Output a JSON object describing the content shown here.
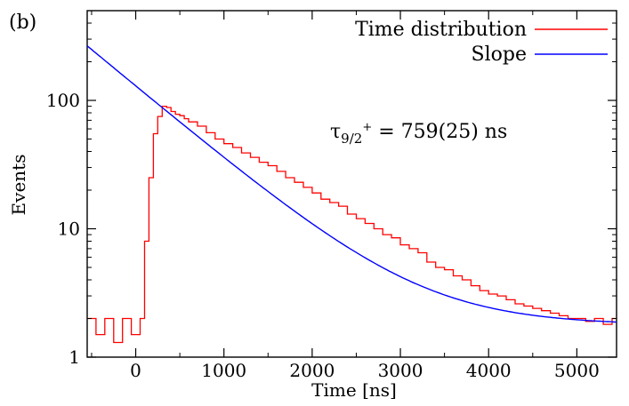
{
  "chart_data": {
    "type": "line",
    "panel_label": "(b)",
    "xlabel": "Time [ns]",
    "ylabel": "Events",
    "xlim": [
      -550,
      5450
    ],
    "ylim": [
      1,
      500
    ],
    "y_scale": "log",
    "grid": false,
    "legend": {
      "placement": "top-right"
    },
    "x_ticks": [
      {
        "value": 0,
        "label": "0"
      },
      {
        "value": 1000,
        "label": "1000"
      },
      {
        "value": 2000,
        "label": "2000"
      },
      {
        "value": 3000,
        "label": "3000"
      },
      {
        "value": 4000,
        "label": "4000"
      },
      {
        "value": 5000,
        "label": "5000"
      }
    ],
    "y_ticks": [
      {
        "value": 1,
        "label": "1"
      },
      {
        "value": 10,
        "label": "10"
      },
      {
        "value": 100,
        "label": "100"
      }
    ],
    "annotation": {
      "tau_symbol": "τ",
      "subscript": "9/2",
      "superscript": "+",
      "text": " = 759(25) ns"
    },
    "series": [
      {
        "name": "Time distribution",
        "color": "#ff0000",
        "style": "histogram",
        "x": [
          -550,
          -450,
          -350,
          -250,
          -150,
          -50,
          0,
          50,
          100,
          150,
          200,
          250,
          300,
          350,
          400,
          450,
          500,
          550,
          600,
          700,
          800,
          900,
          1000,
          1100,
          1200,
          1300,
          1400,
          1500,
          1600,
          1700,
          1800,
          1900,
          2000,
          2100,
          2200,
          2300,
          2400,
          2500,
          2600,
          2700,
          2800,
          2900,
          3000,
          3100,
          3200,
          3300,
          3400,
          3500,
          3600,
          3700,
          3800,
          3900,
          4000,
          4100,
          4200,
          4300,
          4400,
          4500,
          4600,
          4700,
          4800,
          4900,
          5000,
          5100,
          5200,
          5300,
          5400
        ],
        "y": [
          2,
          1.5,
          2,
          1.3,
          2,
          1.5,
          1.5,
          2,
          8,
          25,
          55,
          75,
          90,
          88,
          82,
          78,
          76,
          72,
          68,
          63,
          56,
          50,
          46,
          43,
          39,
          36,
          33,
          31,
          28,
          25,
          23,
          21,
          19,
          17,
          16,
          15,
          13,
          12,
          11,
          10,
          9,
          8.5,
          7.5,
          7,
          6.5,
          5.5,
          5,
          4.8,
          4.3,
          4,
          3.6,
          3.3,
          3.1,
          3,
          2.8,
          2.6,
          2.5,
          2.4,
          2.3,
          2.2,
          2.1,
          2.0,
          2.0,
          1.9,
          2.0,
          1.8,
          2.0
        ]
      },
      {
        "name": "Slope",
        "color": "#0000ff",
        "style": "line",
        "function": "exponential",
        "amplitude": 128,
        "tau_ns": 759,
        "background": 1.78,
        "x_range": [
          -550,
          5450
        ]
      }
    ]
  }
}
